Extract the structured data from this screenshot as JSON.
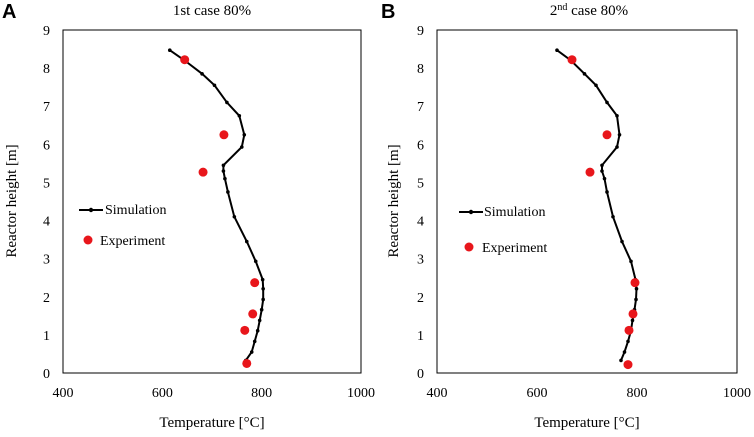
{
  "chart_data": [
    {
      "type": "line",
      "panel_label": "A",
      "title": "1st case 80%",
      "title_base": "1st case 80%",
      "title_sup": "",
      "title_rest": "",
      "xlabel": "Temperature [°C]",
      "ylabel": "Reactor height [m]",
      "xlim": [
        400,
        1000
      ],
      "ylim": [
        0,
        9
      ],
      "xticks": [
        "400",
        "600",
        "800",
        "1000"
      ],
      "yticks": [
        "0",
        "1",
        "2",
        "3",
        "4",
        "5",
        "6",
        "7",
        "8",
        "9"
      ],
      "legend": {
        "position": "center-left",
        "simulation": "Simulation",
        "experiment": "Experiment"
      },
      "series": [
        {
          "name": "Simulation",
          "style": "line-with-dots",
          "x": [
            768,
            780,
            786,
            792,
            796,
            800,
            803,
            803,
            802,
            788,
            770,
            745,
            732,
            726,
            723,
            723,
            760,
            765,
            755,
            730,
            705,
            680,
            645,
            615
          ],
          "y": [
            0.33,
            0.55,
            0.83,
            1.11,
            1.38,
            1.66,
            1.93,
            2.21,
            2.45,
            2.93,
            3.45,
            4.1,
            4.75,
            5.1,
            5.3,
            5.45,
            5.93,
            6.25,
            6.75,
            7.1,
            7.55,
            7.85,
            8.2,
            8.47
          ]
        },
        {
          "name": "Experiment",
          "style": "markers",
          "color": "#e8161b",
          "x": [
            770,
            766,
            782,
            786,
            682,
            724,
            645
          ],
          "y": [
            0.25,
            1.12,
            1.55,
            2.37,
            5.27,
            6.25,
            8.22
          ]
        }
      ]
    },
    {
      "type": "line",
      "panel_label": "B",
      "title": "2nd case 80%",
      "title_base": "2",
      "title_sup": "nd",
      "title_rest": " case 80%",
      "xlabel": "Temperature [°C]",
      "ylabel": "Reactor height [m]",
      "xlim": [
        400,
        1000
      ],
      "ylim": [
        0,
        9
      ],
      "xticks": [
        "400",
        "600",
        "800",
        "1000"
      ],
      "yticks": [
        "0",
        "1",
        "2",
        "3",
        "4",
        "5",
        "6",
        "7",
        "8",
        "9"
      ],
      "legend": {
        "position": "center-left",
        "simulation": "Simulation",
        "experiment": "Experiment"
      },
      "series": [
        {
          "name": "Simulation",
          "style": "line-with-dots",
          "x": [
            768,
            775,
            782,
            788,
            791,
            795,
            798,
            799,
            797,
            788,
            770,
            752,
            740,
            735,
            730,
            730,
            760,
            765,
            760,
            740,
            718,
            695,
            668,
            640
          ],
          "y": [
            0.33,
            0.55,
            0.83,
            1.11,
            1.38,
            1.66,
            1.93,
            2.21,
            2.45,
            2.93,
            3.45,
            4.1,
            4.75,
            5.1,
            5.3,
            5.45,
            5.93,
            6.25,
            6.75,
            7.1,
            7.55,
            7.85,
            8.2,
            8.47
          ]
        },
        {
          "name": "Experiment",
          "style": "markers",
          "color": "#e8161b",
          "x": [
            782,
            784,
            792,
            796,
            706,
            740,
            670
          ],
          "y": [
            0.22,
            1.12,
            1.55,
            2.37,
            5.27,
            6.25,
            8.22
          ]
        }
      ]
    }
  ]
}
